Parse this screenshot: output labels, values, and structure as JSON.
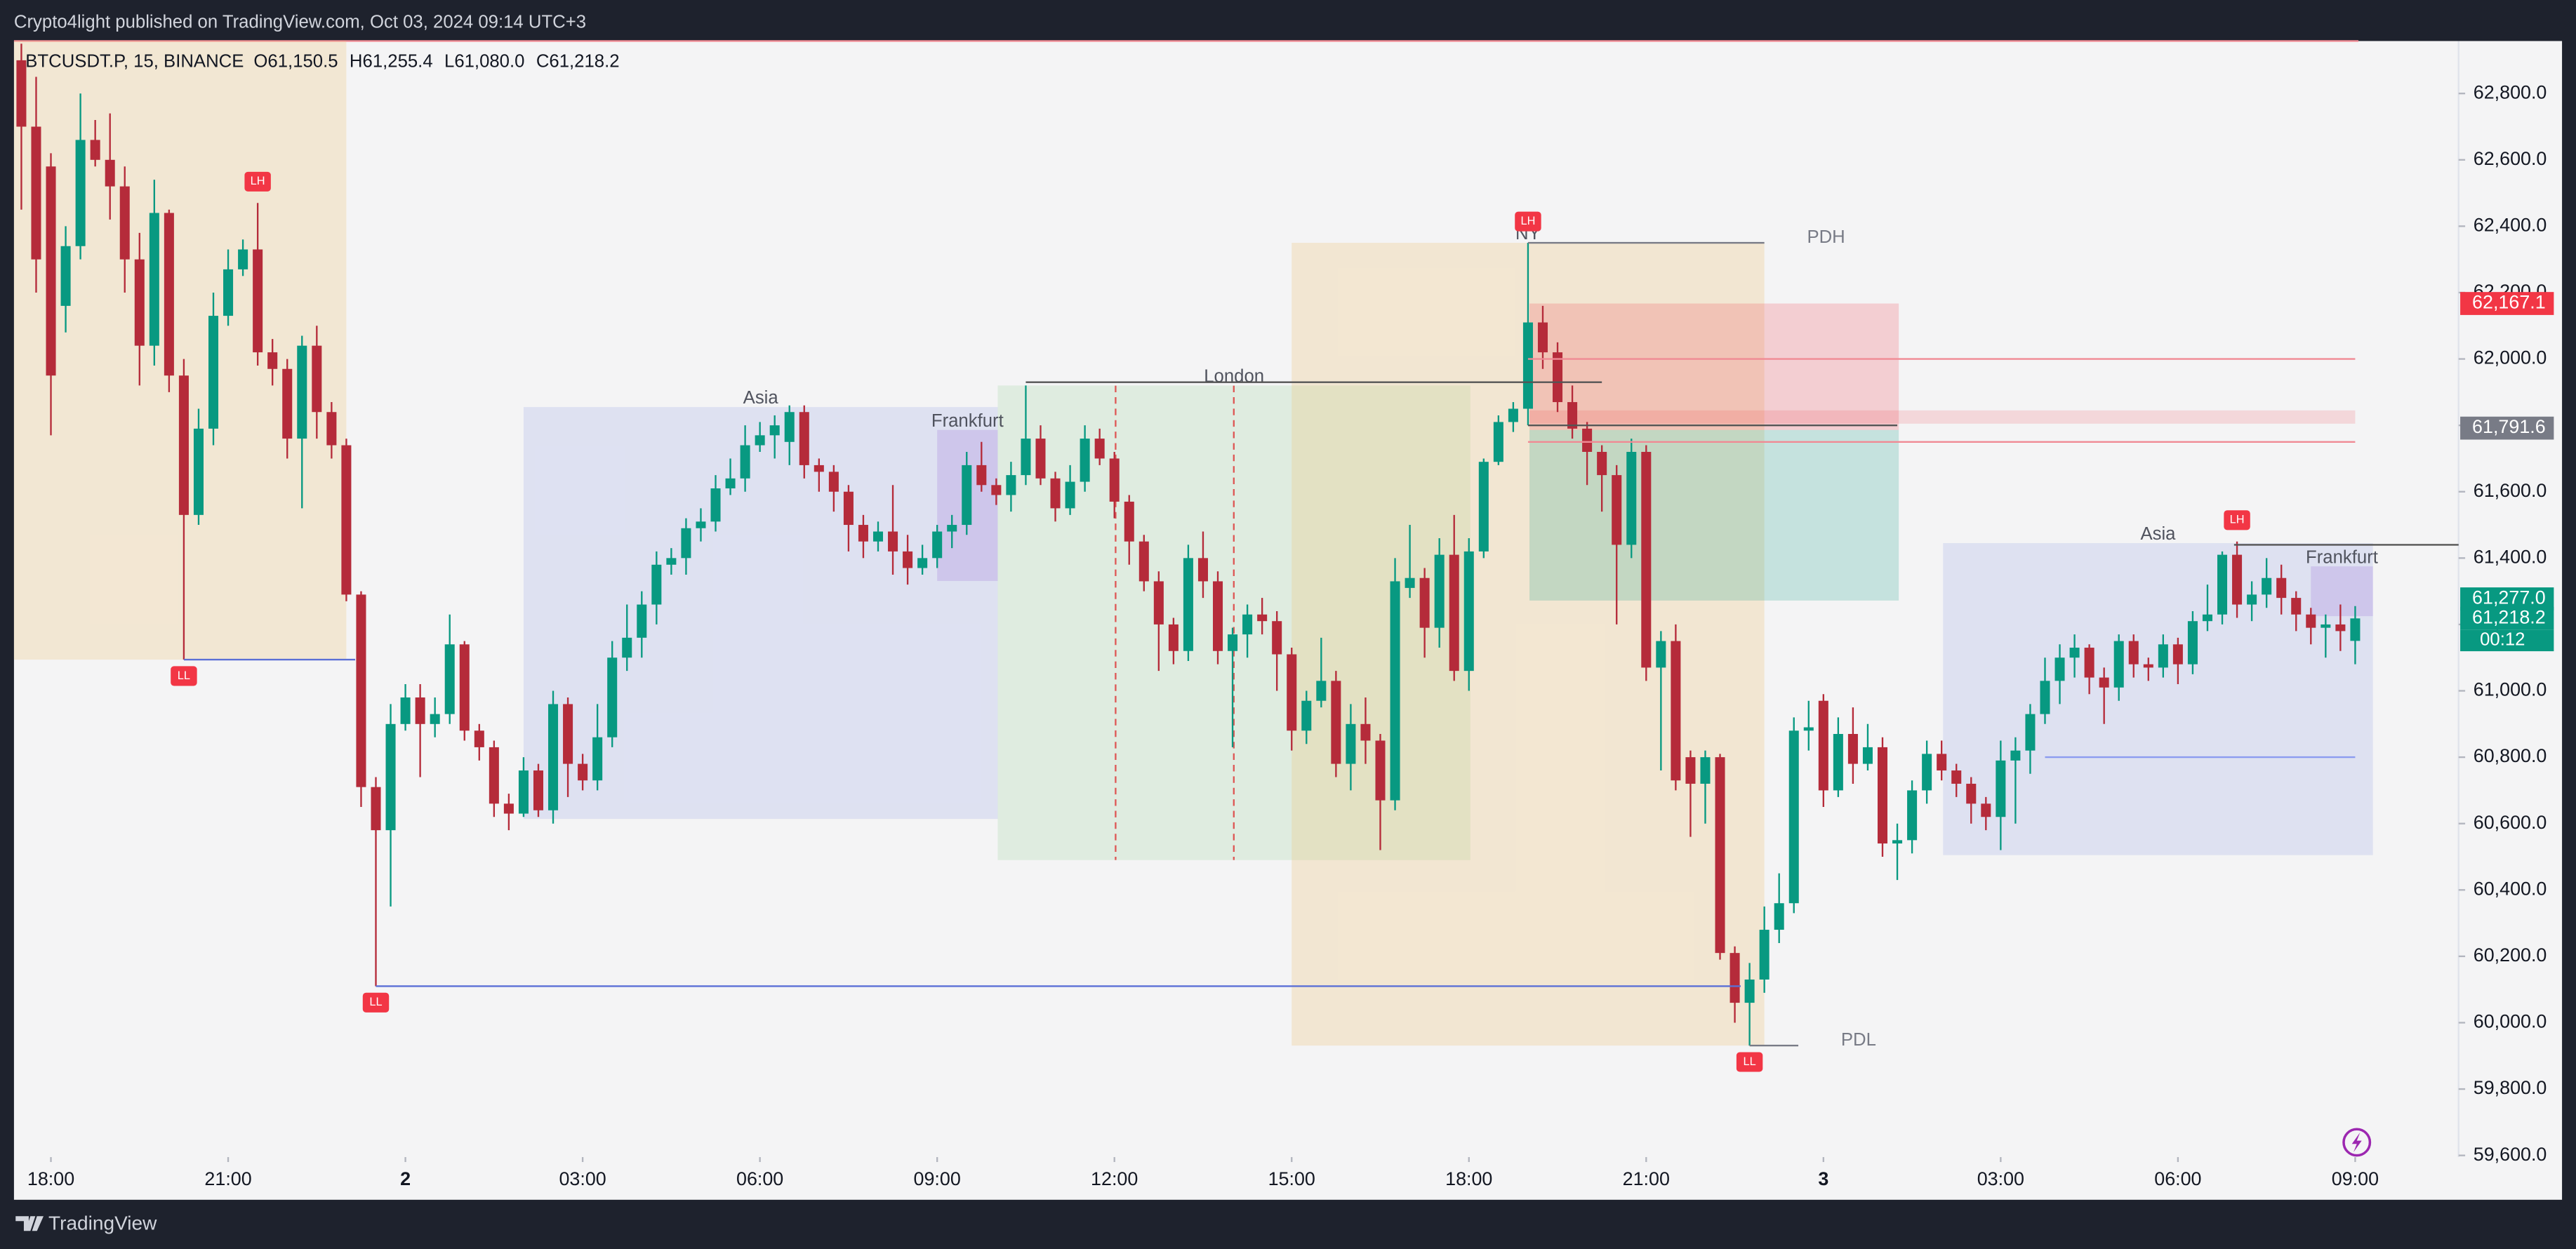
{
  "header": {
    "publisher": "Crypto4light published on TradingView.com, Oct 03, 2024 09:14 UTC+3"
  },
  "footer": {
    "brand": "TradingView"
  },
  "chart_data": {
    "type": "candlestick",
    "symbol": "BTCUSDT.P, 15, BINANCE",
    "legend_ohlc": [
      {
        "key": "O",
        "value": 61150.5,
        "label": "61,150.5"
      },
      {
        "key": "H",
        "value": 61255.4,
        "label": "61,255.4"
      },
      {
        "key": "L",
        "value": 61080.0,
        "label": "61,080.0"
      },
      {
        "key": "C",
        "value": 61218.2,
        "label": "61,218.2"
      }
    ],
    "up_color": "#089981",
    "down_color": "#b52b3a",
    "ohlc": [
      [
        62900,
        62950,
        62450,
        62700
      ],
      [
        62700,
        62850,
        62200,
        62300
      ],
      [
        62580,
        62620,
        61770,
        61950
      ],
      [
        62160,
        62400,
        62080,
        62340
      ],
      [
        62340,
        62800,
        62300,
        62660
      ],
      [
        62660,
        62720,
        62580,
        62600
      ],
      [
        62600,
        62740,
        62420,
        62520
      ],
      [
        62520,
        62580,
        62200,
        62300
      ],
      [
        62300,
        62380,
        61920,
        62040
      ],
      [
        62040,
        62540,
        61980,
        62440
      ],
      [
        62440,
        62450,
        61900,
        61950
      ],
      [
        61950,
        62000,
        61094,
        61530
      ],
      [
        61530,
        61850,
        61500,
        61790
      ],
      [
        61790,
        62200,
        61740,
        62130
      ],
      [
        62130,
        62330,
        62100,
        62270
      ],
      [
        62270,
        62360,
        62250,
        62330
      ],
      [
        62330,
        62470,
        61980,
        62020
      ],
      [
        62020,
        62060,
        61920,
        61970
      ],
      [
        61970,
        62000,
        61700,
        61760
      ],
      [
        61760,
        62070,
        61550,
        62040
      ],
      [
        62040,
        62100,
        61760,
        61840
      ],
      [
        61840,
        61870,
        61700,
        61740
      ],
      [
        61740,
        61760,
        61270,
        61290
      ],
      [
        61290,
        61300,
        60650,
        60710
      ],
      [
        60710,
        60740,
        60110,
        60580
      ],
      [
        60580,
        60960,
        60350,
        60900
      ],
      [
        60900,
        61020,
        60880,
        60980
      ],
      [
        60980,
        61020,
        60740,
        60900
      ],
      [
        60900,
        60980,
        60860,
        60930
      ],
      [
        60930,
        61230,
        60900,
        61140
      ],
      [
        61140,
        61150,
        60850,
        60880
      ],
      [
        60880,
        60900,
        60790,
        60830
      ],
      [
        60830,
        60850,
        60620,
        60660
      ],
      [
        60660,
        60690,
        60580,
        60630
      ],
      [
        60630,
        60800,
        60620,
        60760
      ],
      [
        60760,
        60780,
        60620,
        60640
      ],
      [
        60640,
        61000,
        60600,
        60960
      ],
      [
        60960,
        60980,
        60680,
        60780
      ],
      [
        60780,
        60810,
        60700,
        60730
      ],
      [
        60730,
        60960,
        60700,
        60860
      ],
      [
        60860,
        61150,
        60830,
        61100
      ],
      [
        61100,
        61260,
        61060,
        61160
      ],
      [
        61160,
        61300,
        61100,
        61260
      ],
      [
        61260,
        61420,
        61200,
        61380
      ],
      [
        61380,
        61430,
        61350,
        61400
      ],
      [
        61400,
        61520,
        61350,
        61490
      ],
      [
        61490,
        61550,
        61450,
        61510
      ],
      [
        61510,
        61650,
        61480,
        61610
      ],
      [
        61610,
        61700,
        61590,
        61640
      ],
      [
        61640,
        61800,
        61600,
        61740
      ],
      [
        61740,
        61810,
        61720,
        61770
      ],
      [
        61770,
        61830,
        61700,
        61800
      ],
      [
        61750,
        61860,
        61680,
        61840
      ],
      [
        61840,
        61860,
        61640,
        61680
      ],
      [
        61680,
        61700,
        61600,
        61660
      ],
      [
        61660,
        61680,
        61540,
        61600
      ],
      [
        61600,
        61620,
        61420,
        61500
      ],
      [
        61500,
        61530,
        61400,
        61450
      ],
      [
        61450,
        61510,
        61420,
        61480
      ],
      [
        61480,
        61620,
        61350,
        61420
      ],
      [
        61420,
        61470,
        61320,
        61370
      ],
      [
        61370,
        61440,
        61350,
        61400
      ],
      [
        61400,
        61500,
        61370,
        61480
      ],
      [
        61480,
        61530,
        61430,
        61500
      ],
      [
        61500,
        61720,
        61470,
        61680
      ],
      [
        61680,
        61750,
        61600,
        61620
      ],
      [
        61620,
        61640,
        61560,
        61590
      ],
      [
        61590,
        61690,
        61540,
        61650
      ],
      [
        61650,
        61920,
        61620,
        61760
      ],
      [
        61760,
        61800,
        61620,
        61640
      ],
      [
        61640,
        61660,
        61510,
        61550
      ],
      [
        61550,
        61680,
        61530,
        61630
      ],
      [
        61630,
        61800,
        61600,
        61760
      ],
      [
        61760,
        61790,
        61680,
        61700
      ],
      [
        61700,
        61720,
        61520,
        61570
      ],
      [
        61570,
        61590,
        61380,
        61450
      ],
      [
        61450,
        61470,
        61300,
        61330
      ],
      [
        61330,
        61360,
        61060,
        61200
      ],
      [
        61200,
        61220,
        61080,
        61120
      ],
      [
        61120,
        61440,
        61090,
        61400
      ],
      [
        61400,
        61480,
        61280,
        61330
      ],
      [
        61330,
        61360,
        61080,
        61120
      ],
      [
        61120,
        61190,
        60830,
        61170
      ],
      [
        61170,
        61260,
        61100,
        61230
      ],
      [
        61230,
        61280,
        61170,
        61210
      ],
      [
        61210,
        61240,
        61000,
        61110
      ],
      [
        61110,
        61130,
        60820,
        60880
      ],
      [
        60880,
        61000,
        60840,
        60970
      ],
      [
        60970,
        61160,
        60950,
        61030
      ],
      [
        61030,
        61060,
        60740,
        60780
      ],
      [
        60780,
        60960,
        60700,
        60900
      ],
      [
        60900,
        60980,
        60780,
        60850
      ],
      [
        60850,
        60870,
        60520,
        60670
      ],
      [
        60670,
        61400,
        60640,
        61330
      ],
      [
        61310,
        61500,
        61280,
        61340
      ],
      [
        61340,
        61370,
        61100,
        61190
      ],
      [
        61190,
        61460,
        61130,
        61410
      ],
      [
        61410,
        61530,
        61030,
        61060
      ],
      [
        61060,
        61460,
        61000,
        61420
      ],
      [
        61420,
        61700,
        61400,
        61690
      ],
      [
        61690,
        61830,
        61680,
        61810
      ],
      [
        61810,
        61870,
        61780,
        61850
      ],
      [
        61850,
        62350,
        61800,
        62110
      ],
      [
        62110,
        62160,
        61970,
        62020
      ],
      [
        62020,
        62050,
        61840,
        61870
      ],
      [
        61870,
        61920,
        61760,
        61790
      ],
      [
        61790,
        61810,
        61620,
        61720
      ],
      [
        61720,
        61740,
        61540,
        61650
      ],
      [
        61650,
        61680,
        61200,
        61440
      ],
      [
        61440,
        61760,
        61400,
        61720
      ],
      [
        61720,
        61740,
        61030,
        61070
      ],
      [
        61070,
        61180,
        60760,
        61150
      ],
      [
        61150,
        61200,
        60700,
        60730
      ],
      [
        60800,
        60820,
        60560,
        60720
      ],
      [
        60720,
        60820,
        60600,
        60800
      ],
      [
        60800,
        60810,
        60190,
        60210
      ],
      [
        60210,
        60230,
        60000,
        60060
      ],
      [
        60060,
        60180,
        59931,
        60130
      ],
      [
        60130,
        60350,
        60090,
        60280
      ],
      [
        60280,
        60450,
        60240,
        60360
      ],
      [
        60360,
        60920,
        60330,
        60880
      ],
      [
        60880,
        60970,
        60820,
        60890
      ],
      [
        60970,
        60990,
        60650,
        60700
      ],
      [
        60700,
        60920,
        60680,
        60870
      ],
      [
        60870,
        60950,
        60720,
        60780
      ],
      [
        60780,
        60900,
        60760,
        60830
      ],
      [
        60830,
        60860,
        60500,
        60540
      ],
      [
        60540,
        60600,
        60430,
        60550
      ],
      [
        60550,
        60730,
        60510,
        60700
      ],
      [
        60700,
        60850,
        60660,
        60810
      ],
      [
        60810,
        60850,
        60730,
        60760
      ],
      [
        60760,
        60780,
        60680,
        60720
      ],
      [
        60720,
        60740,
        60600,
        60660
      ],
      [
        60660,
        60680,
        60580,
        60620
      ],
      [
        60620,
        60850,
        60520,
        60790
      ],
      [
        60790,
        60860,
        60600,
        60820
      ],
      [
        60820,
        60960,
        60750,
        60930
      ],
      [
        60930,
        61100,
        60900,
        61030
      ],
      [
        61030,
        61140,
        60960,
        61100
      ],
      [
        61100,
        61170,
        61040,
        61130
      ],
      [
        61130,
        61140,
        60990,
        61040
      ],
      [
        61040,
        61070,
        60900,
        61010
      ],
      [
        61010,
        61170,
        60970,
        61150
      ],
      [
        61150,
        61170,
        61040,
        61080
      ],
      [
        61080,
        61100,
        61030,
        61070
      ],
      [
        61070,
        61170,
        61040,
        61140
      ],
      [
        61140,
        61160,
        61020,
        61080
      ],
      [
        61080,
        61240,
        61050,
        61210
      ],
      [
        61210,
        61320,
        61180,
        61230
      ],
      [
        61230,
        61420,
        61200,
        61410
      ],
      [
        61410,
        61450,
        61220,
        61260
      ],
      [
        61260,
        61330,
        61210,
        61290
      ],
      [
        61290,
        61400,
        61250,
        61340
      ],
      [
        61340,
        61380,
        61230,
        61280
      ],
      [
        61280,
        61300,
        61180,
        61230
      ],
      [
        61230,
        61250,
        61140,
        61190
      ],
      [
        61190,
        61230,
        61100,
        61200
      ],
      [
        61200,
        61260,
        61120,
        61180
      ],
      [
        61150.5,
        61255.4,
        61080.0,
        61218.2
      ]
    ],
    "xlim": [
      -0.5,
      165
    ],
    "xticks": [
      {
        "value": 2,
        "label": "18:00"
      },
      {
        "value": 14,
        "label": "21:00"
      },
      {
        "value": 26,
        "label": "2"
      },
      {
        "value": 38,
        "label": "03:00"
      },
      {
        "value": 50,
        "label": "06:00"
      },
      {
        "value": 62,
        "label": "09:00"
      },
      {
        "value": 74,
        "label": "12:00"
      },
      {
        "value": 86,
        "label": "15:00"
      },
      {
        "value": 98,
        "label": "18:00"
      },
      {
        "value": 110,
        "label": "21:00"
      },
      {
        "value": 122,
        "label": "3"
      },
      {
        "value": 134,
        "label": "03:00"
      },
      {
        "value": 146,
        "label": "06:00"
      },
      {
        "value": 158,
        "label": "09:00"
      }
    ],
    "ylim": [
      59595,
      62958
    ],
    "yticks": [
      {
        "value": 62800,
        "label": "62,800.0"
      },
      {
        "value": 62600,
        "label": "62,600.0"
      },
      {
        "value": 62400,
        "label": "62,400.0"
      },
      {
        "value": 62200,
        "label": "62,200.0"
      },
      {
        "value": 62000,
        "label": "62,000.0"
      },
      {
        "value": 61800,
        "label": "61,800.0"
      },
      {
        "value": 61600,
        "label": "61,600.0"
      },
      {
        "value": 61400,
        "label": "61,400.0"
      },
      {
        "value": 61200,
        "label": "61,200.0"
      },
      {
        "value": 61000,
        "label": "61,000.0"
      },
      {
        "value": 60800,
        "label": "60,800.0"
      },
      {
        "value": 60600,
        "label": "60,600.0"
      },
      {
        "value": 60400,
        "label": "60,400.0"
      },
      {
        "value": 60200,
        "label": "60,200.0"
      },
      {
        "value": 60000,
        "label": "60,000.0"
      },
      {
        "value": 59800,
        "label": "59,800.0"
      },
      {
        "value": 59600,
        "label": "59,600.0"
      }
    ],
    "zones": [
      {
        "x": [
          -0.5,
          22
        ],
        "y": [
          61094,
          62958
        ],
        "color": "rgba(240,205,140,0.32)"
      },
      {
        "label": "Asia",
        "x": [
          34,
          66.1
        ],
        "y": [
          60614,
          61855
        ],
        "color": "rgba(120,140,230,0.18)"
      },
      {
        "label": "Frankfurt",
        "x": [
          62,
          66.1
        ],
        "y": [
          61331,
          61786
        ],
        "color": "rgba(160,120,220,0.25)"
      },
      {
        "label": "London",
        "x": [
          66.1,
          98.1
        ],
        "y": [
          60490,
          61920
        ],
        "color": "rgba(150,210,150,0.22)"
      },
      {
        "label": "NY",
        "x": [
          86,
          118
        ],
        "y": [
          59931,
          62350
        ],
        "color": "rgba(240,200,130,0.3)"
      },
      {
        "x": [
          102.1,
          127.1
        ],
        "y": [
          61786,
          62167.1
        ],
        "color": "rgba(242,54,69,0.2)"
      },
      {
        "x": [
          102.1,
          127.1
        ],
        "y": [
          61272,
          61786
        ],
        "color": "rgba(8,153,129,0.2)"
      },
      {
        "x": [
          102.1,
          158
        ],
        "y": [
          61805,
          61845
        ],
        "color": "rgba(242,54,69,0.15)"
      },
      {
        "label": "Asia",
        "x": [
          130.1,
          159.2
        ],
        "y": [
          60505,
          61445
        ],
        "color": "rgba(120,140,230,0.18)"
      },
      {
        "label": "Frankfurt",
        "x": [
          155,
          159.2
        ],
        "y": [
          61225,
          61375
        ],
        "color": "rgba(160,120,220,0.25)"
      }
    ],
    "levels": [
      {
        "label": "PDH",
        "price": 62350,
        "from": 102,
        "to": 118,
        "color": "#787b86"
      },
      {
        "label": "PDL",
        "price": 59931,
        "from": 117,
        "to": 120.3,
        "color": "#787b86"
      },
      {
        "price": 60110,
        "from": 24,
        "to": 116.4,
        "color": "#5b6fd6"
      },
      {
        "price": 61094,
        "from": 11,
        "to": 22.6,
        "color": "#5b6fd6"
      },
      {
        "price": 62000,
        "from": 102,
        "to": 158,
        "color": "#f08a94"
      },
      {
        "price": 61750,
        "from": 102,
        "to": 158,
        "color": "#f08a94"
      },
      {
        "price": 61800,
        "from": 102,
        "to": 127,
        "color": "#555"
      },
      {
        "price": 61930,
        "from": 68,
        "to": 107,
        "color": "#555"
      },
      {
        "price": 61440,
        "from": 149.8,
        "to": 165,
        "color": "#555"
      },
      {
        "price": 60800,
        "from": 137,
        "to": 158,
        "color": "#8c9cf0"
      }
    ],
    "swing_labels": [
      {
        "text": "LH",
        "index": 16,
        "price": 62470
      },
      {
        "text": "LL",
        "index": 11,
        "price": 61094
      },
      {
        "text": "LL",
        "index": 24,
        "price": 60110
      },
      {
        "text": "LH",
        "index": 102,
        "price": 62350
      },
      {
        "text": "LL",
        "index": 117,
        "price": 59931
      },
      {
        "text": "LH",
        "index": 150,
        "price": 61450
      }
    ],
    "price_tags": [
      {
        "value": 62167.1,
        "label": "62,167.1",
        "color": "#f23645"
      },
      {
        "value": 61791.6,
        "label": "61,791.6",
        "color": "#787b86"
      },
      {
        "value": 61277.0,
        "label": "61,277.0",
        "color": "#089981"
      },
      {
        "value": 61218.2,
        "label": "61,218.2",
        "color": "#089981"
      }
    ],
    "countdown": "00:12"
  }
}
